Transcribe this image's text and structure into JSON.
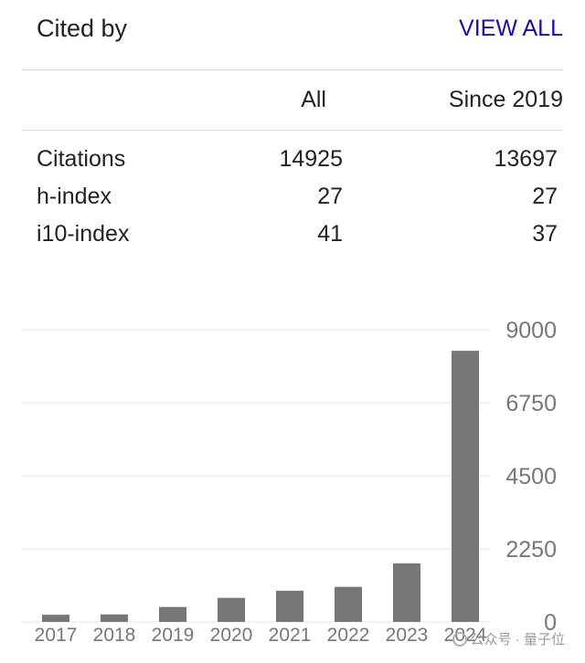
{
  "header": {
    "title": "Cited by",
    "view_all": "VIEW ALL"
  },
  "columns": {
    "all": "All",
    "since": "Since 2019"
  },
  "stats": [
    {
      "label": "Citations",
      "all": "14925",
      "since": "13697"
    },
    {
      "label": "h-index",
      "all": "27",
      "since": "27"
    },
    {
      "label": "i10-index",
      "all": "41",
      "since": "37"
    }
  ],
  "watermark": "公众号 · 量子位",
  "colors": {
    "bar": "#777777",
    "link": "#1a0dab",
    "grid": "#e6e6e6"
  },
  "chart_data": {
    "type": "bar",
    "categories": [
      "2017",
      "2018",
      "2019",
      "2020",
      "2021",
      "2022",
      "2023",
      "2024"
    ],
    "values": [
      220,
      230,
      460,
      740,
      960,
      1080,
      1800,
      8350
    ],
    "yticks": [
      "9000",
      "6750",
      "4500",
      "2250",
      "0"
    ],
    "ylim": [
      0,
      9000
    ],
    "grid": true,
    "title": "",
    "xlabel": "",
    "ylabel": ""
  }
}
